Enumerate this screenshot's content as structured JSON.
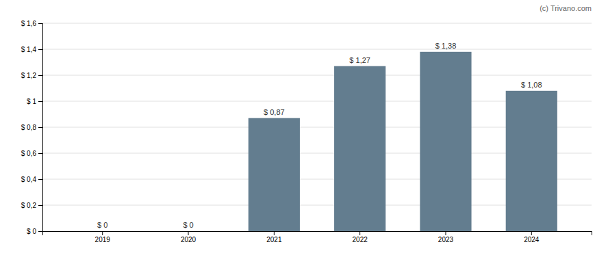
{
  "chart_data": {
    "type": "bar",
    "categories": [
      "2019",
      "2020",
      "2021",
      "2022",
      "2023",
      "2024"
    ],
    "values": [
      0,
      0,
      0.87,
      1.27,
      1.38,
      1.08
    ],
    "value_labels": [
      "$ 0",
      "$ 0",
      "$ 0,87",
      "$ 1,27",
      "$ 1,38",
      "$ 1,08"
    ],
    "data_labels": true,
    "color": "#637d8f",
    "ylim": [
      0,
      1.6
    ],
    "yticks": [
      {
        "value": 0,
        "label": "$ 0"
      },
      {
        "value": 0.2,
        "label": "$ 0,2"
      },
      {
        "value": 0.4,
        "label": "$ 0,4"
      },
      {
        "value": 0.6,
        "label": "$ 0,6"
      },
      {
        "value": 0.8,
        "label": "$ 0,8"
      },
      {
        "value": 1.0,
        "label": "$ 1"
      },
      {
        "value": 1.2,
        "label": "$ 1,2"
      },
      {
        "value": 1.4,
        "label": "$ 1,4"
      },
      {
        "value": 1.6,
        "label": "$ 1,6"
      }
    ],
    "grid": true,
    "annotations": [
      "(c) Trivano.com"
    ]
  }
}
